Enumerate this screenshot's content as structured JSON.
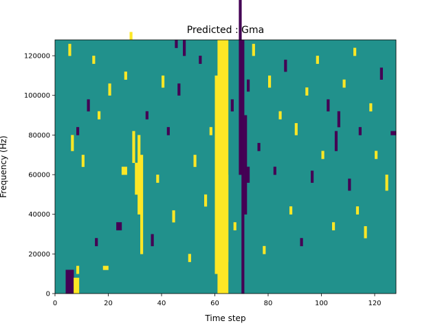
{
  "chart_data": {
    "type": "heatmap",
    "title": "Predicted : Gma",
    "xlabel": "Time step",
    "ylabel": "Frequency (Hz)",
    "xlim": [
      0,
      128
    ],
    "ylim": [
      0,
      128000
    ],
    "xticks": [
      0,
      20,
      40,
      60,
      80,
      100,
      120
    ],
    "yticks": [
      0,
      20000,
      40000,
      60000,
      80000,
      100000,
      120000
    ],
    "ytick_labels": [
      "0",
      "20000",
      "40000",
      "60000",
      "80000",
      "100000",
      "120000"
    ],
    "grid": false,
    "colormap": "viridis",
    "levels": [
      {
        "value": -1,
        "color": "#440154"
      },
      {
        "value": 0,
        "color": "#21918c"
      },
      {
        "value": 1,
        "color": "#fde725"
      }
    ],
    "background_value": 0,
    "n_time_steps": 128,
    "n_freq_bins": 64,
    "freq_bin_hz": 2000,
    "cells": [
      [
        61,
        0,
        4,
        64,
        1
      ],
      [
        70,
        0,
        1,
        64,
        -1
      ],
      [
        71,
        20,
        1,
        25,
        -1
      ],
      [
        69,
        30,
        1,
        55,
        -1
      ],
      [
        60,
        5,
        1,
        50,
        1
      ],
      [
        64,
        8,
        1,
        22,
        1
      ],
      [
        32,
        10,
        1,
        25,
        1
      ],
      [
        31,
        20,
        1,
        20,
        1
      ],
      [
        30,
        25,
        1,
        8,
        1
      ],
      [
        29,
        33,
        1,
        8,
        1
      ],
      [
        4,
        0,
        3,
        6,
        -1
      ],
      [
        7,
        0,
        2,
        4,
        1
      ],
      [
        8,
        5,
        1,
        2,
        1
      ],
      [
        23,
        16,
        2,
        2,
        -1
      ],
      [
        18,
        6,
        2,
        1,
        1
      ],
      [
        25,
        30,
        2,
        2,
        1
      ],
      [
        36,
        12,
        1,
        3,
        -1
      ],
      [
        45,
        62,
        1,
        2,
        -1
      ],
      [
        48,
        60,
        1,
        4,
        -1
      ],
      [
        72,
        28,
        1,
        4,
        -1
      ],
      [
        72,
        51,
        1,
        3,
        -1
      ],
      [
        106,
        42,
        1,
        4,
        -1
      ],
      [
        113,
        20,
        1,
        2,
        1
      ],
      [
        105,
        36,
        1,
        5,
        -1
      ],
      [
        118,
        46,
        1,
        2,
        1
      ],
      [
        126,
        40,
        2,
        1,
        -1
      ],
      [
        124,
        26,
        1,
        4,
        1
      ],
      [
        6,
        36,
        1,
        4,
        1
      ],
      [
        5,
        60,
        1,
        3,
        1
      ],
      [
        8,
        40,
        1,
        2,
        -1
      ],
      [
        10,
        32,
        1,
        3,
        1
      ],
      [
        12,
        46,
        1,
        3,
        -1
      ],
      [
        14,
        58,
        1,
        2,
        1
      ],
      [
        15,
        12,
        1,
        2,
        -1
      ],
      [
        16,
        44,
        1,
        2,
        1
      ],
      [
        20,
        50,
        1,
        3,
        1
      ],
      [
        26,
        54,
        1,
        2,
        1
      ],
      [
        28,
        64,
        1,
        2,
        1
      ],
      [
        34,
        44,
        1,
        2,
        -1
      ],
      [
        38,
        28,
        1,
        2,
        1
      ],
      [
        40,
        52,
        1,
        3,
        1
      ],
      [
        42,
        40,
        1,
        2,
        -1
      ],
      [
        44,
        18,
        1,
        3,
        1
      ],
      [
        46,
        50,
        1,
        3,
        -1
      ],
      [
        50,
        8,
        1,
        2,
        1
      ],
      [
        52,
        32,
        1,
        3,
        1
      ],
      [
        54,
        58,
        1,
        2,
        -1
      ],
      [
        56,
        22,
        1,
        3,
        1
      ],
      [
        58,
        40,
        1,
        2,
        1
      ],
      [
        66,
        46,
        1,
        3,
        -1
      ],
      [
        67,
        16,
        1,
        2,
        1
      ],
      [
        74,
        60,
        1,
        3,
        1
      ],
      [
        76,
        36,
        1,
        2,
        -1
      ],
      [
        78,
        10,
        1,
        2,
        1
      ],
      [
        80,
        52,
        1,
        3,
        1
      ],
      [
        82,
        30,
        1,
        2,
        -1
      ],
      [
        84,
        44,
        1,
        2,
        1
      ],
      [
        86,
        56,
        1,
        3,
        -1
      ],
      [
        88,
        20,
        1,
        2,
        1
      ],
      [
        90,
        40,
        1,
        3,
        1
      ],
      [
        92,
        12,
        1,
        2,
        -1
      ],
      [
        94,
        50,
        1,
        2,
        1
      ],
      [
        96,
        28,
        1,
        3,
        -1
      ],
      [
        98,
        58,
        1,
        2,
        1
      ],
      [
        100,
        34,
        1,
        2,
        1
      ],
      [
        102,
        46,
        1,
        3,
        -1
      ],
      [
        104,
        16,
        1,
        2,
        1
      ],
      [
        108,
        52,
        1,
        2,
        1
      ],
      [
        110,
        26,
        1,
        3,
        -1
      ],
      [
        112,
        60,
        1,
        2,
        1
      ],
      [
        114,
        40,
        1,
        2,
        -1
      ],
      [
        116,
        14,
        1,
        3,
        1
      ],
      [
        120,
        34,
        1,
        2,
        1
      ],
      [
        122,
        54,
        1,
        3,
        -1
      ]
    ]
  }
}
